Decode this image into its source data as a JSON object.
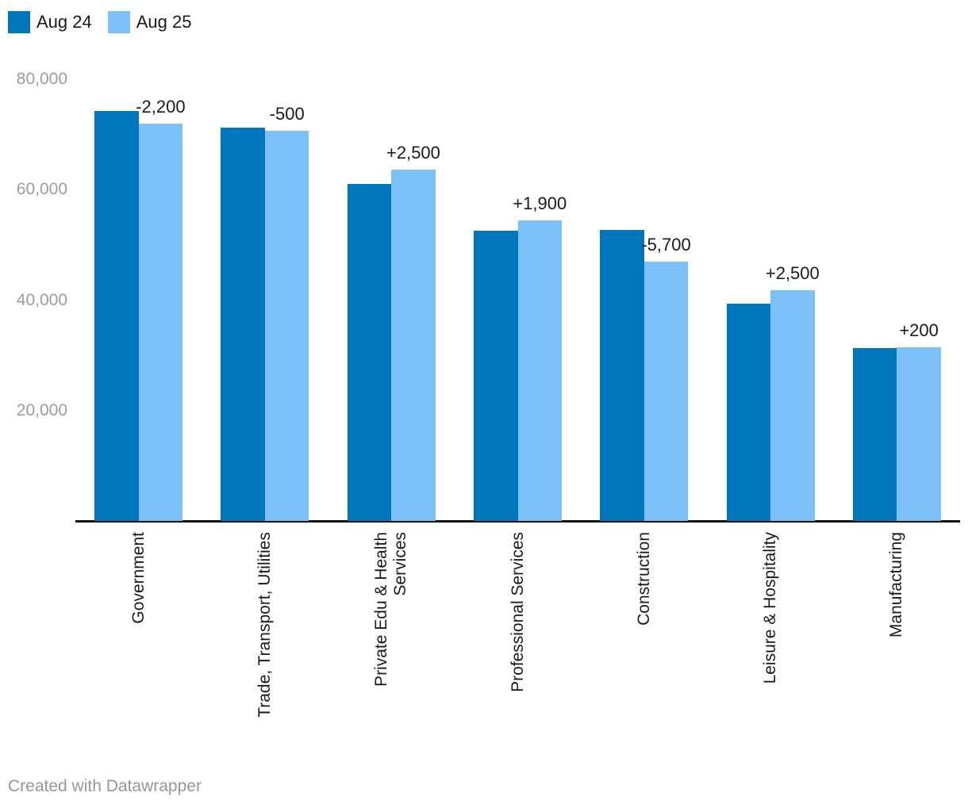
{
  "legend": {
    "items": [
      {
        "label": "Aug 24",
        "color": "#0077bd"
      },
      {
        "label": "Aug 25",
        "color": "#7bc0f8"
      }
    ]
  },
  "footer": {
    "credit": "Created with Datawrapper"
  },
  "chart_data": {
    "type": "bar",
    "title": "",
    "xlabel": "",
    "ylabel": "",
    "categories": [
      "Government",
      "Trade, Transport, Utilities",
      "Private Edu & Health Services",
      "Professional Services",
      "Construction",
      "Leisure & Hospitality",
      "Manufacturing"
    ],
    "category_label_lines": [
      [
        "Government"
      ],
      [
        "Trade, Transport, Utilities"
      ],
      [
        "Private Edu & Health",
        "Services"
      ],
      [
        "Professional Services"
      ],
      [
        "Construction"
      ],
      [
        "Leisure & Hospitality"
      ],
      [
        "Manufacturing"
      ]
    ],
    "series": [
      {
        "name": "Aug 24",
        "color": "#0077bd",
        "values": [
          74200,
          71200,
          61100,
          52600,
          52700,
          39300,
          31300
        ]
      },
      {
        "name": "Aug 25",
        "color": "#7bc0f8",
        "values": [
          72000,
          70700,
          63600,
          54500,
          47000,
          41800,
          31500
        ]
      }
    ],
    "diff_labels": [
      "-2,200",
      "-500",
      "+2,500",
      "+1,900",
      "-5,700",
      "+2,500",
      "+200"
    ],
    "y_ticks": [
      {
        "value": 20000,
        "label": "20,000"
      },
      {
        "value": 40000,
        "label": "40,000"
      },
      {
        "value": 60000,
        "label": "60,000"
      },
      {
        "value": 80000,
        "label": "80,000"
      }
    ],
    "ylim": [
      0,
      80000
    ],
    "grid": false,
    "legend_position": "top-left"
  }
}
